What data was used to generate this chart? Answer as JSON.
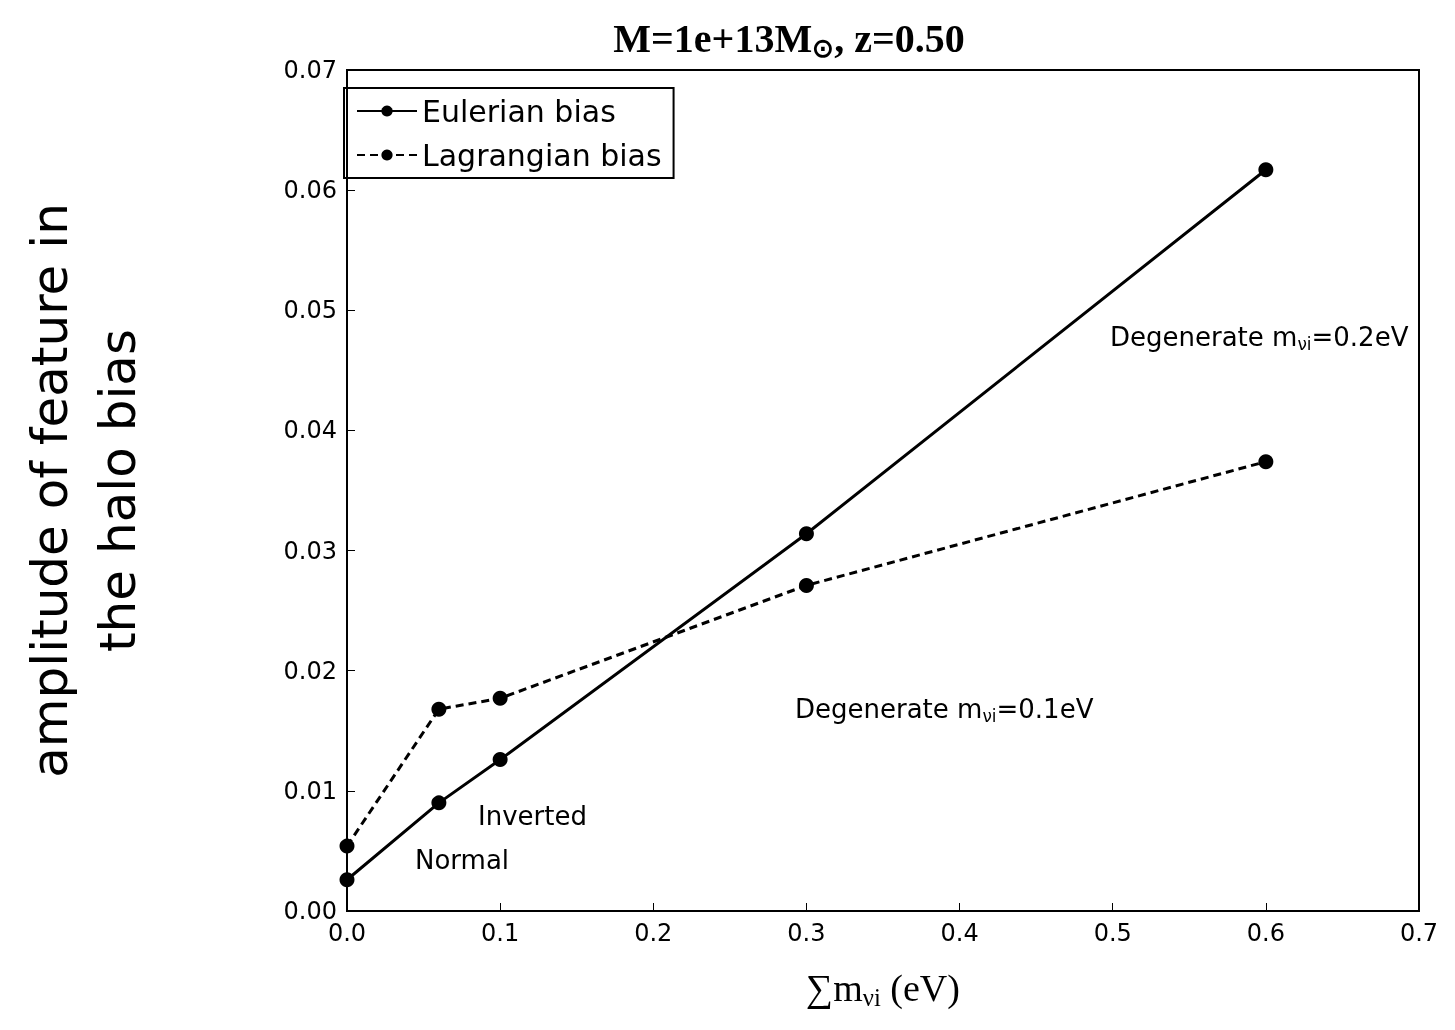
{
  "chart_data": {
    "type": "line",
    "title": "M=1e+13M$_{⊙}$, z=0.50",
    "xlabel": "∑m$_{νi}$ (eV)",
    "ylabel": "amplitude of feature in\nthe halo bias",
    "series": [
      {
        "name": "Eulerian bias",
        "color": "#000000",
        "line_style": "solid",
        "x": [
          0,
          0.06,
          0.1,
          0.3,
          0.6
        ],
        "values": [
          0.0026,
          0.009,
          0.0126,
          0.0314,
          0.0617
        ]
      },
      {
        "name": "Lagrangian bias",
        "color": "#000000",
        "line_style": "dashed",
        "x": [
          0,
          0.06,
          0.1,
          0.3,
          0.6
        ],
        "values": [
          0.0054,
          0.0168,
          0.0177,
          0.0271,
          0.0374
        ]
      }
    ],
    "marker": "circle",
    "legend": "top left",
    "grid": false,
    "xlim": [
      0,
      0.7
    ],
    "xticks": [
      {
        "value": 0,
        "label": "0.0"
      },
      0.1,
      0.2,
      0.3,
      0.4,
      0.5,
      0.6,
      0.7
    ],
    "ylim": [
      0,
      0.07
    ],
    "yticks": [
      {
        "value": 0,
        "label": "0.00"
      },
      0.01,
      0.02,
      0.03,
      0.04,
      0.05,
      0.06,
      0.07
    ],
    "annotations": [
      "Normal",
      "Inverted",
      "Degenerate m$_{νi}$=0.1eV",
      "Degenerate m$_{νi}$=0.2eV"
    ]
  }
}
